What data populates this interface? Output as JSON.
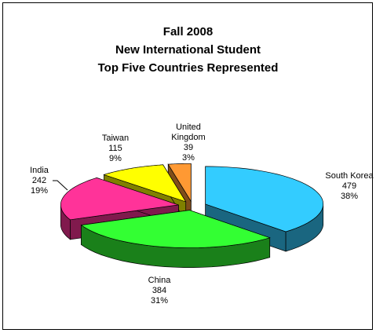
{
  "chart_data": {
    "type": "pie",
    "title": [
      "Fall 2008",
      "New International Student",
      "Top Five Countries Represented"
    ],
    "categories": [
      "South Korea",
      "China",
      "India",
      "Taiwan",
      "United Kingdom"
    ],
    "values": [
      479,
      384,
      242,
      115,
      39
    ],
    "percent_labels": [
      "38%",
      "31%",
      "19%",
      "9%",
      "3%"
    ],
    "colors": [
      "#33ccff",
      "#33ff33",
      "#ff3399",
      "#ffff00",
      "#ff9933"
    ],
    "explode": true,
    "three_d": true
  }
}
